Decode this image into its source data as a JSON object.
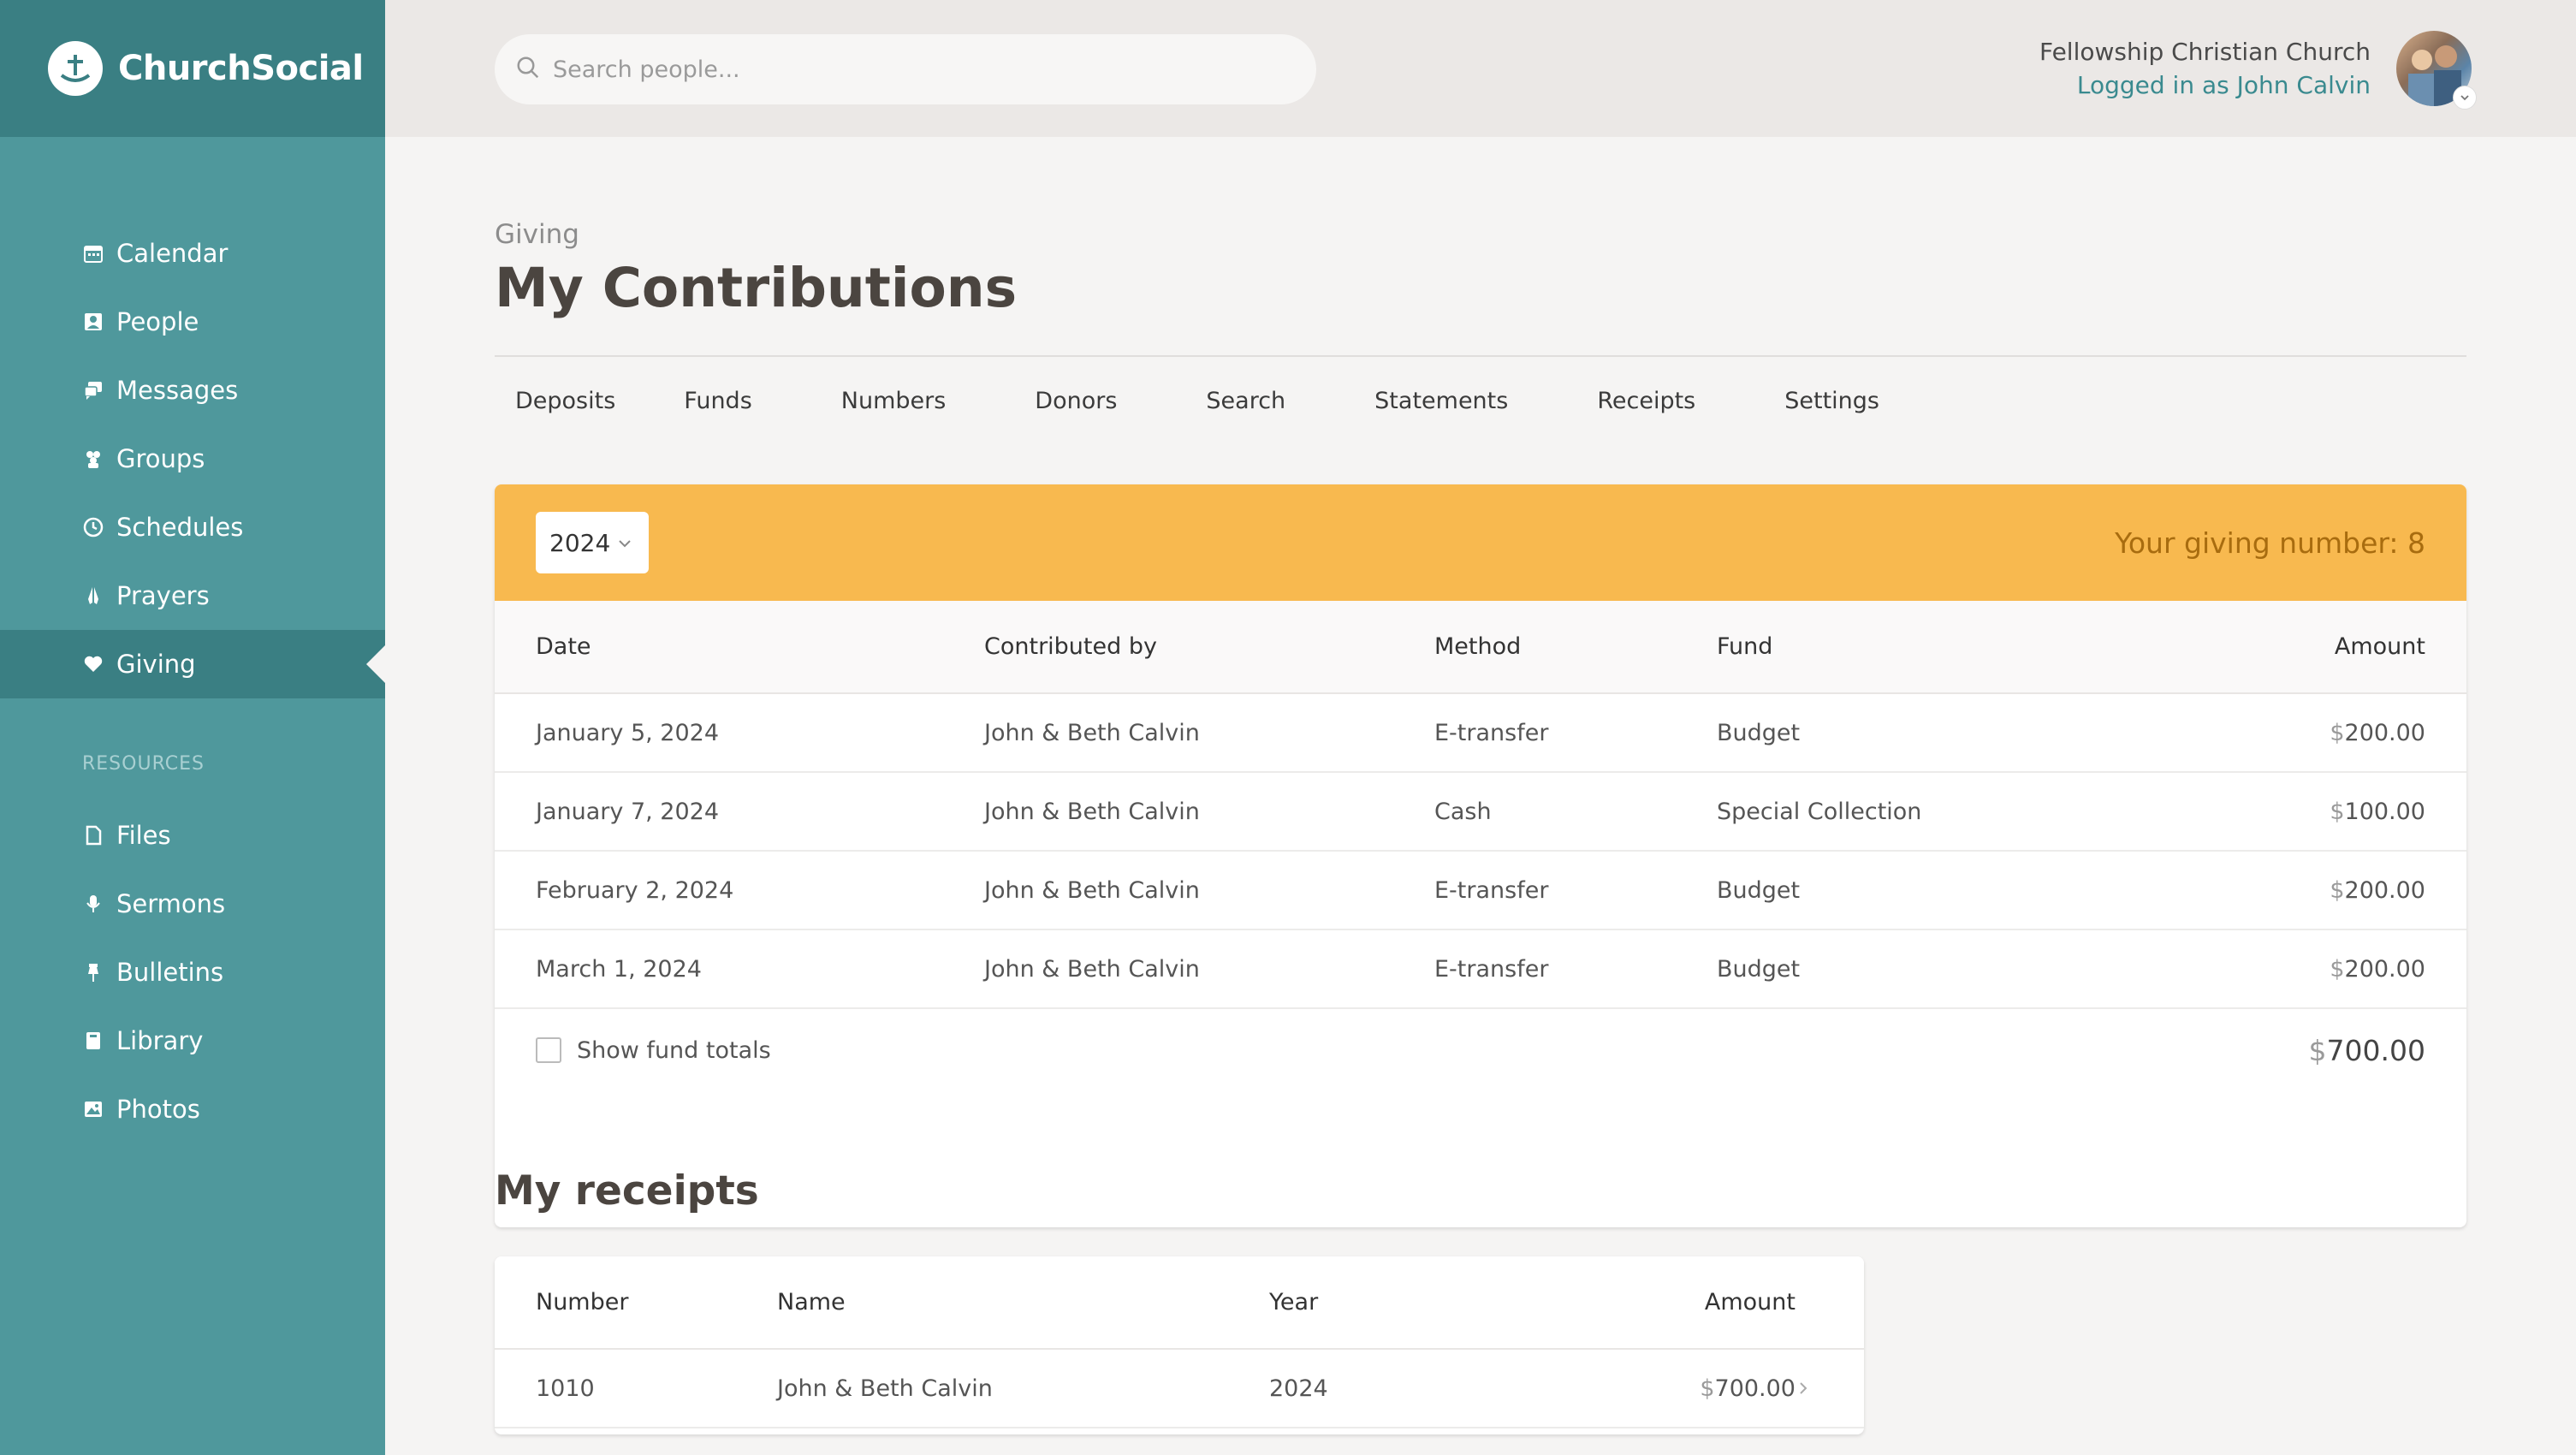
{
  "brand": {
    "name": "ChurchSocial"
  },
  "header": {
    "search_placeholder": "Search people...",
    "church_name": "Fellowship Christian Church",
    "logged_in": "Logged in as John Calvin"
  },
  "sidebar": {
    "items": [
      {
        "label": "Calendar",
        "icon": "calendar-icon"
      },
      {
        "label": "People",
        "icon": "people-icon"
      },
      {
        "label": "Messages",
        "icon": "messages-icon"
      },
      {
        "label": "Groups",
        "icon": "groups-icon"
      },
      {
        "label": "Schedules",
        "icon": "clock-icon"
      },
      {
        "label": "Prayers",
        "icon": "praying-hands-icon"
      },
      {
        "label": "Giving",
        "icon": "heart-icon",
        "active": true
      }
    ],
    "resources_label": "RESOURCES",
    "resources": [
      {
        "label": "Files",
        "icon": "file-icon"
      },
      {
        "label": "Sermons",
        "icon": "microphone-icon"
      },
      {
        "label": "Bulletins",
        "icon": "pin-icon"
      },
      {
        "label": "Library",
        "icon": "book-icon"
      },
      {
        "label": "Photos",
        "icon": "image-icon"
      }
    ]
  },
  "page": {
    "breadcrumb": "Giving",
    "title": "My Contributions",
    "tabs": [
      "Deposits",
      "Funds",
      "Numbers",
      "Donors",
      "Search",
      "Statements",
      "Receipts",
      "Settings"
    ]
  },
  "contributions": {
    "year": "2024",
    "giving_number": "Your giving number: 8",
    "columns": [
      "Date",
      "Contributed by",
      "Method",
      "Fund",
      "Amount"
    ],
    "rows": [
      {
        "date": "January 5, 2024",
        "by": "John & Beth Calvin",
        "method": "E-transfer",
        "fund": "Budget",
        "amount": "200.00"
      },
      {
        "date": "January 7, 2024",
        "by": "John & Beth Calvin",
        "method": "Cash",
        "fund": "Special Collection",
        "amount": "100.00"
      },
      {
        "date": "February 2, 2024",
        "by": "John & Beth Calvin",
        "method": "E-transfer",
        "fund": "Budget",
        "amount": "200.00"
      },
      {
        "date": "March 1, 2024",
        "by": "John & Beth Calvin",
        "method": "E-transfer",
        "fund": "Budget",
        "amount": "200.00"
      }
    ],
    "show_totals_label": "Show fund totals",
    "total": "700.00",
    "currency": "$"
  },
  "receipts": {
    "title": "My receipts",
    "columns": [
      "Number",
      "Name",
      "Year",
      "Amount"
    ],
    "rows": [
      {
        "number": "1010",
        "name": "John & Beth Calvin",
        "year": "2024",
        "amount": "700.00"
      }
    ]
  },
  "colors": {
    "sidebar": "#4f989c",
    "sidebar_dark": "#3a7f83",
    "banner": "#f8b94f",
    "giving_text": "#a86c0f",
    "link": "#3a8a8f"
  }
}
